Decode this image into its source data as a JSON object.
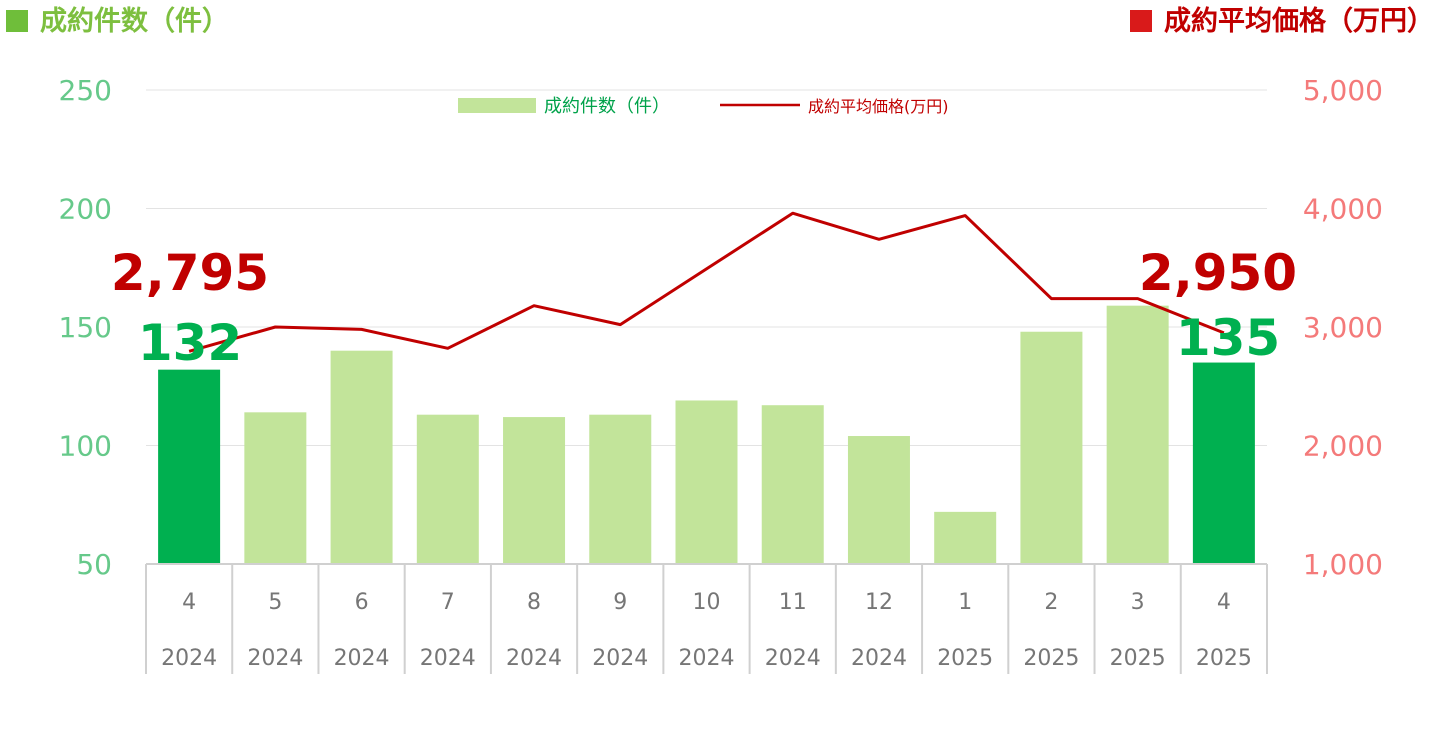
{
  "header": {
    "left_label": "成約件数（件）",
    "right_label": "成約平均価格（万円）"
  },
  "legend": {
    "bar_label": "成約件数（件）",
    "line_label": "成約平均価格(万円)"
  },
  "colors": {
    "bar_normal": "#c2e49a",
    "bar_highlight": "#00b050",
    "line": "#c00000",
    "left_axis": "#66c98a",
    "right_axis": "#f47a7a"
  },
  "chart_data": {
    "type": "bar",
    "categories": [
      "4",
      "5",
      "6",
      "7",
      "8",
      "9",
      "10",
      "11",
      "12",
      "1",
      "2",
      "3",
      "4"
    ],
    "years": [
      "2024",
      "2024",
      "2024",
      "2024",
      "2024",
      "2024",
      "2024",
      "2024",
      "2024",
      "2025",
      "2025",
      "2025",
      "2025"
    ],
    "series": [
      {
        "name": "成約件数（件）",
        "type": "bar",
        "axis": "left",
        "values": [
          132,
          114,
          140,
          113,
          112,
          113,
          119,
          117,
          104,
          72,
          148,
          159,
          135
        ]
      },
      {
        "name": "成約平均価格(万円)",
        "type": "line",
        "axis": "right",
        "values": [
          2795,
          3000,
          2980,
          2820,
          3180,
          3020,
          3490,
          3960,
          3740,
          3940,
          3240,
          3240,
          2950
        ]
      }
    ],
    "highlight_indices": [
      0,
      12
    ],
    "left_axis": {
      "ylim": [
        50,
        250
      ],
      "ticks": [
        "50",
        "100",
        "150",
        "200",
        "250"
      ]
    },
    "right_axis": {
      "ylim": [
        1000,
        5000
      ],
      "ticks": [
        "1,000",
        "2,000",
        "3,000",
        "4,000",
        "5,000"
      ]
    },
    "annotations": {
      "first_price": "2,795",
      "first_count": "132",
      "last_price": "2,950",
      "last_count": "135"
    },
    "grid": true,
    "legend_position": "top-center"
  }
}
